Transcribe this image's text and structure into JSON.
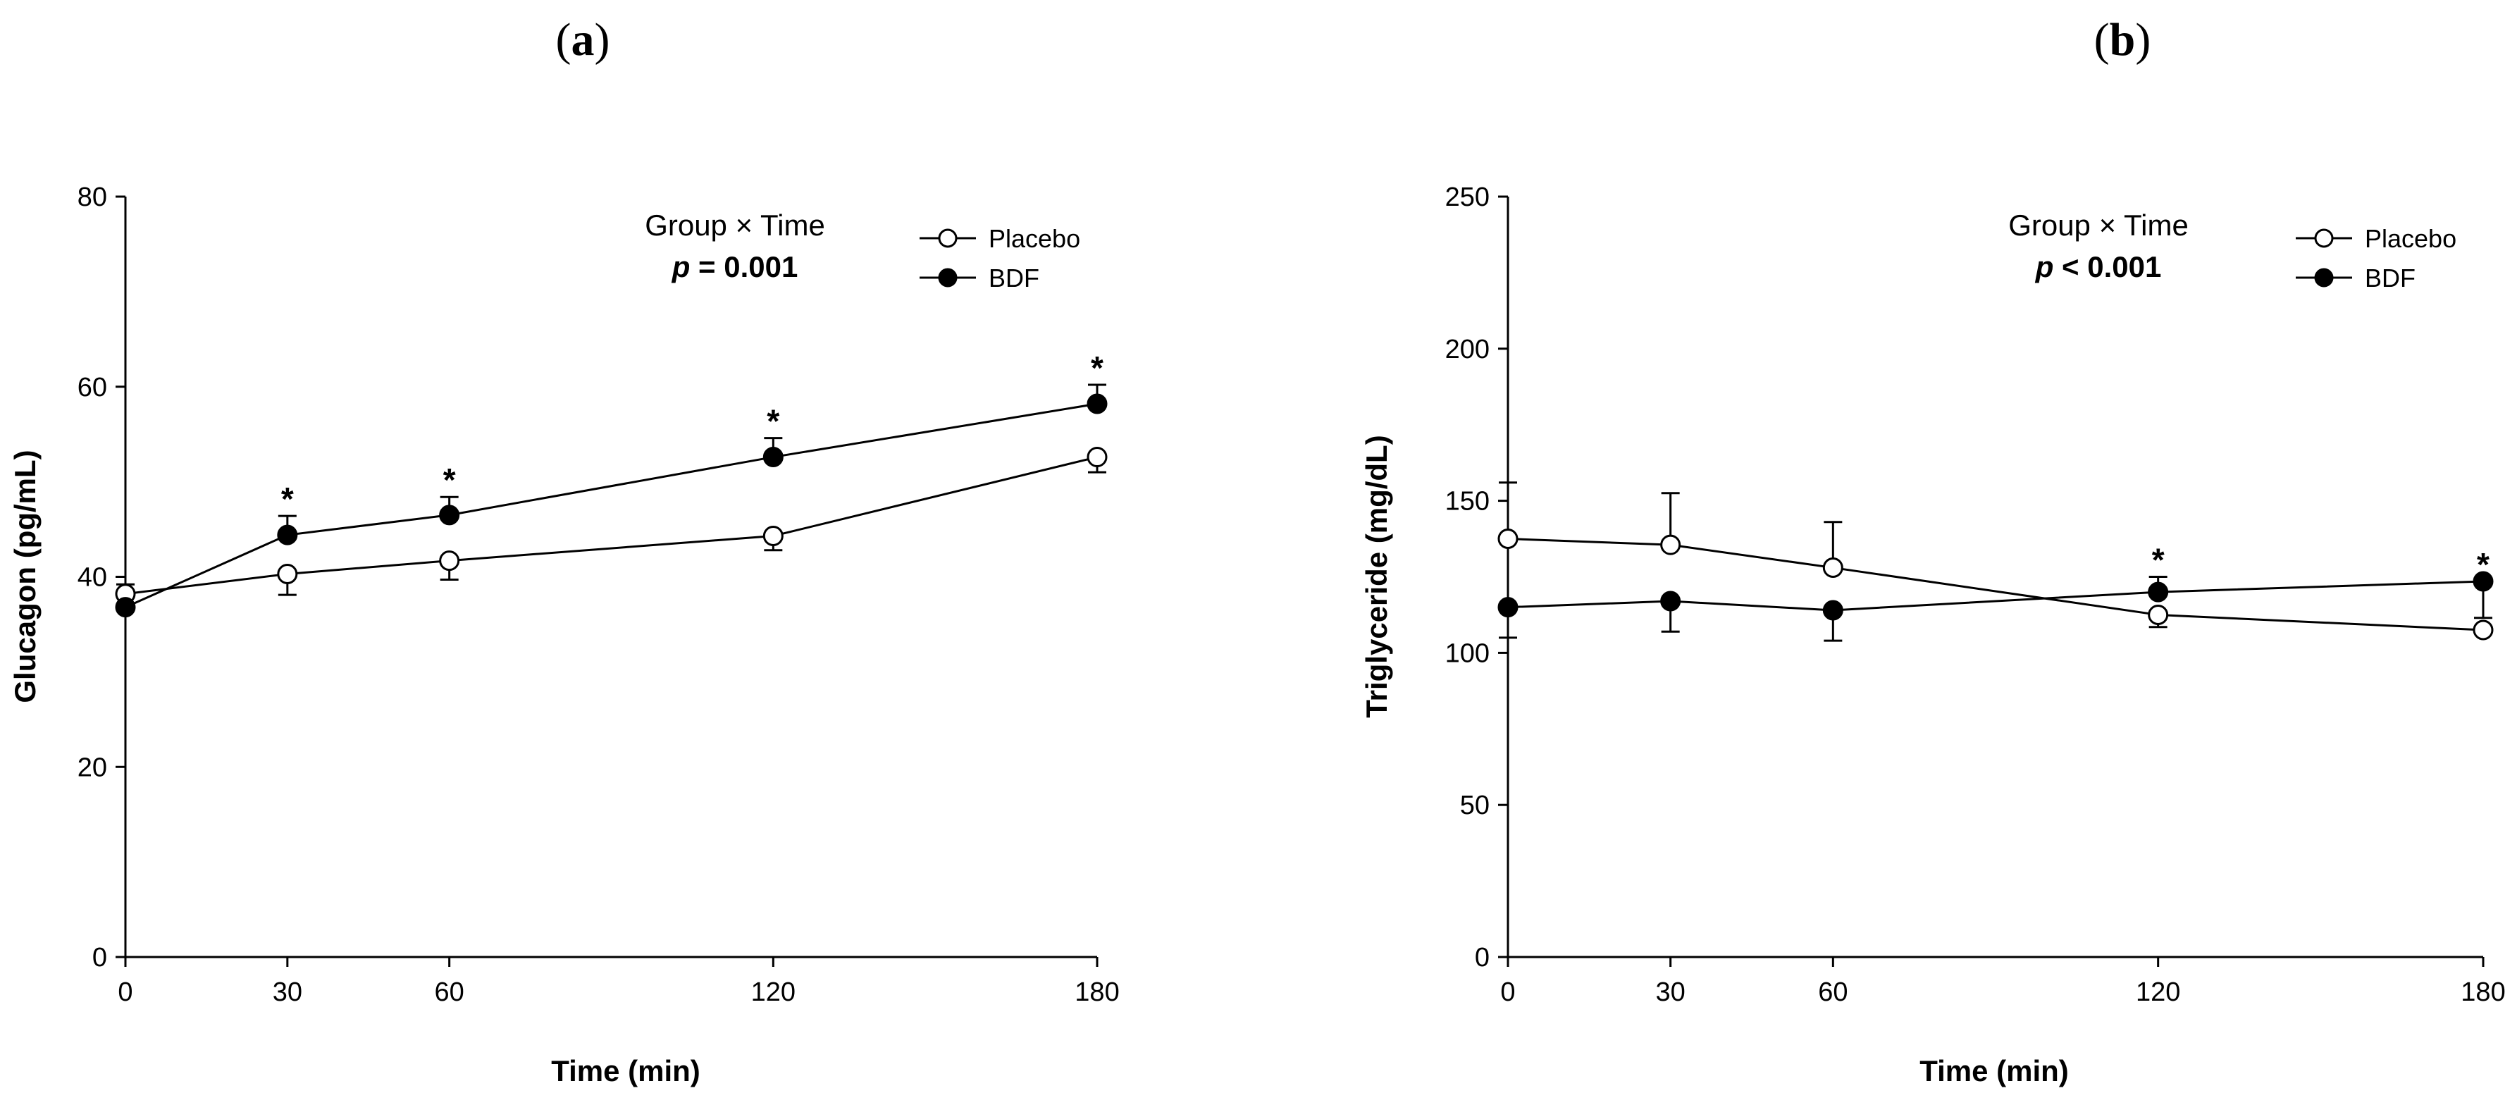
{
  "chart_data": [
    {
      "type": "line",
      "panel_label": "(a)",
      "panel_letter": "a",
      "xlabel": "Time (min)",
      "ylabel": "Glucagon (pg/mL)",
      "x": [
        0,
        30,
        60,
        120,
        180
      ],
      "xlim": [
        0,
        180
      ],
      "ylim": [
        0,
        80
      ],
      "xticks": [
        0,
        30,
        60,
        120,
        180
      ],
      "yticks": [
        0,
        20,
        40,
        60,
        80
      ],
      "annotation_title": "Group × Time",
      "annotation_p_symbol": "p",
      "annotation_p_rest": " = 0.001",
      "series": [
        {
          "name": "Placebo",
          "marker": "open-circle",
          "values": [
            38.2,
            40.3,
            41.7,
            44.3,
            52.6
          ],
          "err_up": [
            1.0,
            0,
            0,
            0,
            0
          ],
          "err_down": [
            0,
            2.2,
            2.0,
            1.5,
            1.6
          ]
        },
        {
          "name": "BDF",
          "marker": "filled-circle",
          "values": [
            36.8,
            44.4,
            46.5,
            52.6,
            58.2
          ],
          "err_up": [
            0,
            2.0,
            1.9,
            2.0,
            2.0
          ],
          "err_down": [
            0,
            0,
            0,
            0,
            0
          ]
        }
      ],
      "significance_marks": [
        {
          "x": 30,
          "symbol": "*"
        },
        {
          "x": 60,
          "symbol": "*"
        },
        {
          "x": 120,
          "symbol": "*"
        },
        {
          "x": 180,
          "symbol": "*"
        }
      ]
    },
    {
      "type": "line",
      "panel_label": "(b)",
      "panel_letter": "b",
      "xlabel": "Time (min)",
      "ylabel": "Triglyceride (mg/dL)",
      "x": [
        0,
        30,
        60,
        120,
        180
      ],
      "xlim": [
        0,
        180
      ],
      "ylim": [
        0,
        250
      ],
      "xticks": [
        0,
        30,
        60,
        120,
        180
      ],
      "yticks": [
        0,
        50,
        100,
        150,
        200,
        250
      ],
      "annotation_title": "Group × Time",
      "annotation_p_symbol": "p",
      "annotation_p_rest": " < 0.001",
      "series": [
        {
          "name": "Placebo",
          "marker": "open-circle",
          "values": [
            137.5,
            135.5,
            128.0,
            112.5,
            107.5
          ],
          "err_up": [
            18.5,
            17.0,
            15.0,
            0,
            0
          ],
          "err_down": [
            0,
            0,
            0,
            4.0,
            0
          ]
        },
        {
          "name": "BDF",
          "marker": "filled-circle",
          "values": [
            115.0,
            117.0,
            114.0,
            120.0,
            123.5
          ],
          "err_up": [
            0,
            0,
            0,
            5.0,
            0
          ],
          "err_down": [
            10.0,
            10.0,
            10.0,
            0,
            12.0
          ]
        }
      ],
      "significance_marks": [
        {
          "x": 120,
          "symbol": "*"
        },
        {
          "x": 180,
          "symbol": "*"
        }
      ]
    }
  ]
}
